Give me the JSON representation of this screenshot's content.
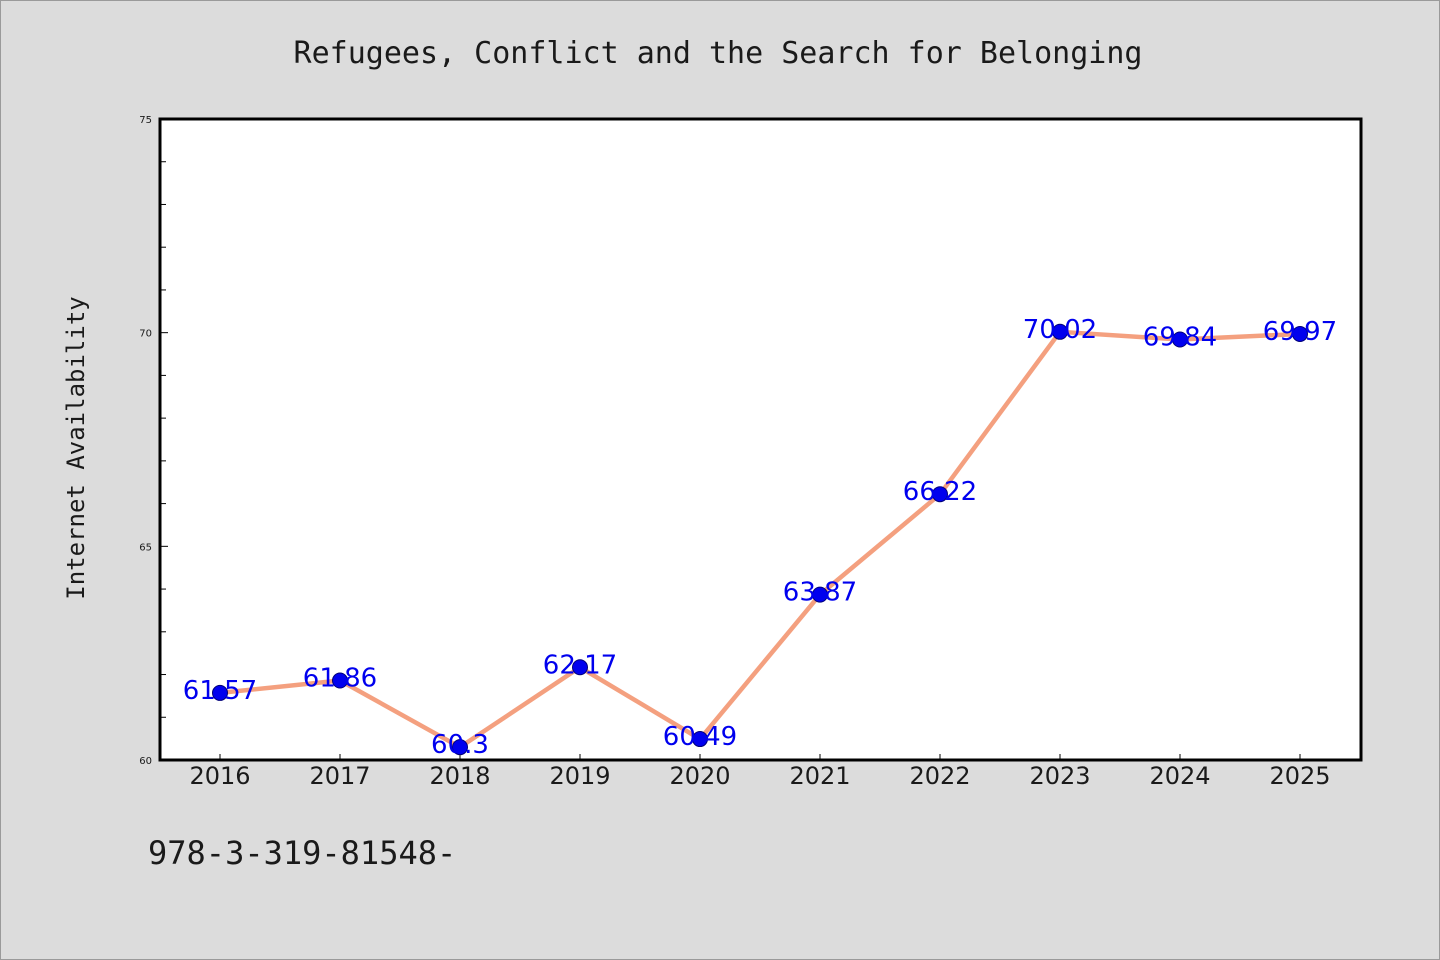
{
  "chart_data": {
    "type": "line",
    "title": "Refugees, Conflict and the Search for Belonging",
    "xlabel": "",
    "ylabel": "Internet Availability",
    "categories": [
      "2016",
      "2017",
      "2018",
      "2019",
      "2020",
      "2021",
      "2022",
      "2023",
      "2024",
      "2025"
    ],
    "series": [
      {
        "values": [
          61.57,
          61.86,
          60.3,
          62.17,
          60.49,
          63.87,
          66.22,
          70.02,
          69.84,
          69.97
        ],
        "labels": [
          "61.57",
          "61.86",
          "60.3",
          "62.17",
          "60.49",
          "63.87",
          "66.22",
          "70.02",
          "69.84",
          "69.97"
        ],
        "line_color": "#f4a07f",
        "marker_color": "#0000ee"
      }
    ],
    "ylim": [
      60,
      75
    ],
    "yticks": [
      "60",
      "65",
      "70",
      "75"
    ],
    "grid": false,
    "legend": "none"
  },
  "footer": {
    "text": "978-3-319-81548-"
  },
  "colors": {
    "background": "#dcdcdc",
    "plot_background": "#ffffff",
    "axis": "#000000"
  }
}
